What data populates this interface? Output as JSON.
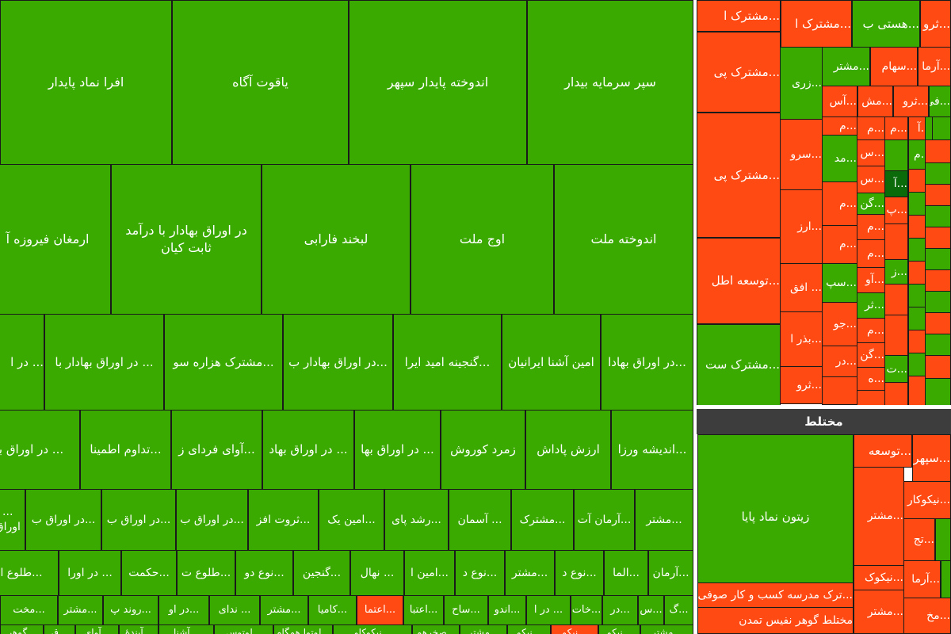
{
  "sector_header": "مختلط",
  "colors": {
    "gain": "#3aaa00",
    "loss": "#ff4a14",
    "strong_gain": "#0b6b0b",
    "header": "#3d3d3d"
  },
  "big": {
    "r1": [
      "سپر سرمایه بیدار",
      "اندوخته پایدار سپهر",
      "یاقوت آگاه",
      "افرا نماد پایدار"
    ],
    "r2": [
      "اندوخته ملت",
      "اوج ملت",
      "لبخند فارابی",
      "در اوراق بهادار با درآمد ثابت کیان",
      "ارمغان فیروزه آ"
    ],
    "r3": [
      "...در اوراق بهادا",
      "امین آشنا ایرانیان",
      "...گنجینه امید ایرا",
      "...در اوراق بهادار ب",
      "...مشترک هزاره سو",
      "... در اوراق بهادار با",
      "... در ا"
    ],
    "r4": [
      "...اندیشه ورزا",
      "ارزش پاداش",
      "زمرد کوروش",
      "... در اوراق بها",
      "... در اوراق بهاد",
      "...آوای فردای ز",
      "...تداوم اطمینا",
      "... در اوراق به"
    ],
    "r5": [
      "...مشتر",
      "...آرمان آت",
      "...مشترک",
      "... آسمان",
      "...رشد پای",
      "...امین یک",
      "...ثروت افز",
      "...در اوراق ب",
      "...در اوراق ب",
      "...در اوراق ب",
      "... در اوراق ب"
    ],
    "r6": [
      "...آرمان",
      "...الما",
      "...نوع د",
      "...مشتر",
      "...نوع د",
      "...امین ا",
      "... نهال",
      "...گنجین",
      "...نوع دو",
      "...طلوع ت",
      "...حکمت",
      "... در اورا",
      "...طلوع ا"
    ],
    "r7": [
      "...گ",
      "...س",
      "...در",
      "...خات",
      "... در ا",
      "...اندو",
      "...ساح",
      "...اعتبا",
      "...اعتما",
      "...کامیا",
      "...مشتر",
      "... ندای",
      "...در او",
      "...روند پ",
      "...مشتر",
      "...مخت"
    ],
    "r8": [
      "...مشتر",
      "...نیکو",
      "...نیکو",
      "...نیکو",
      "...مشتر",
      "...صخرهم",
      "...نیکوکاو",
      "...لوتوا همگام",
      "...لوتوس",
      "...آشنا",
      "...آیندهٔ",
      "...آوای",
      "...ق",
      "...گوهر"
    ]
  },
  "right": {
    "col1": [
      "...مشترک ا",
      "...مشترک پی",
      "...مشترک پی",
      "...توسعه اطل",
      "...مشترک ست"
    ],
    "top": [
      "...هستی ب",
      "...ثرو",
      "...مشترک ا"
    ],
    "row2": [
      "...مشتر",
      "...سهام",
      "...آرما"
    ],
    "row3": [
      "...آس",
      "...مش",
      "...ثرو",
      "...فی"
    ],
    "col2": [
      "...زری",
      "...سرو",
      "...ارز",
      "... افق",
      "...بذر ا",
      "...ثرو"
    ],
    "col3": [
      "...م",
      "...مد",
      "...م",
      "...م",
      "...سپ",
      "...جو",
      "...در"
    ],
    "col4": [
      "...م",
      "...س",
      "...س",
      "...گن",
      "...م",
      "...م",
      "...آو",
      "...ثر",
      "...م",
      "...گن",
      "...ه"
    ],
    "col5": [
      "...م",
      "...آ",
      "...پ",
      "...ز",
      "...ت"
    ],
    "col6": [
      "...آ",
      "...م"
    ]
  },
  "bottom": {
    "big": "زیتون نماد پایا",
    "items": [
      "...توسعه",
      "...سپهر",
      "...نیکوکار",
      "...مشتر",
      "...تج",
      "...نیکوک",
      "...آرما",
      "...مشتر",
      "...مخ"
    ],
    "footer": [
      "...ترک مدرسه کسب و کار صوفی رازی",
      "مختلط گوهر نفیس تمدن"
    ]
  }
}
